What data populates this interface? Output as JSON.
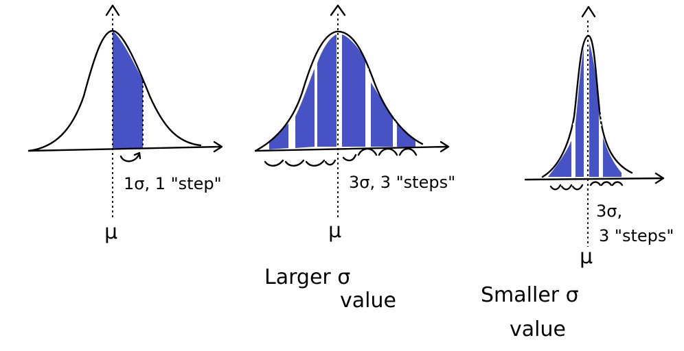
{
  "colors": {
    "shade": "#4752c4",
    "ink": "#000000",
    "background": "#ffffff"
  },
  "panels": [
    {
      "id": "one-sigma",
      "mean_label": "μ",
      "annotation_lines": [
        "1σ, 1 \"step\""
      ],
      "steps": 1,
      "sigma": 1,
      "caption_lines": []
    },
    {
      "id": "larger-sigma",
      "mean_label": "μ",
      "annotation_lines": [
        "3σ, 3 \"steps\""
      ],
      "steps": 3,
      "sigma": 3,
      "caption_lines": [
        "Larger σ",
        "value"
      ]
    },
    {
      "id": "smaller-sigma",
      "mean_label": "μ",
      "annotation_lines": [
        "3σ,",
        "3 \"steps\""
      ],
      "steps": 3,
      "sigma": 3,
      "caption_lines": [
        "Smaller σ",
        "value"
      ]
    }
  ]
}
